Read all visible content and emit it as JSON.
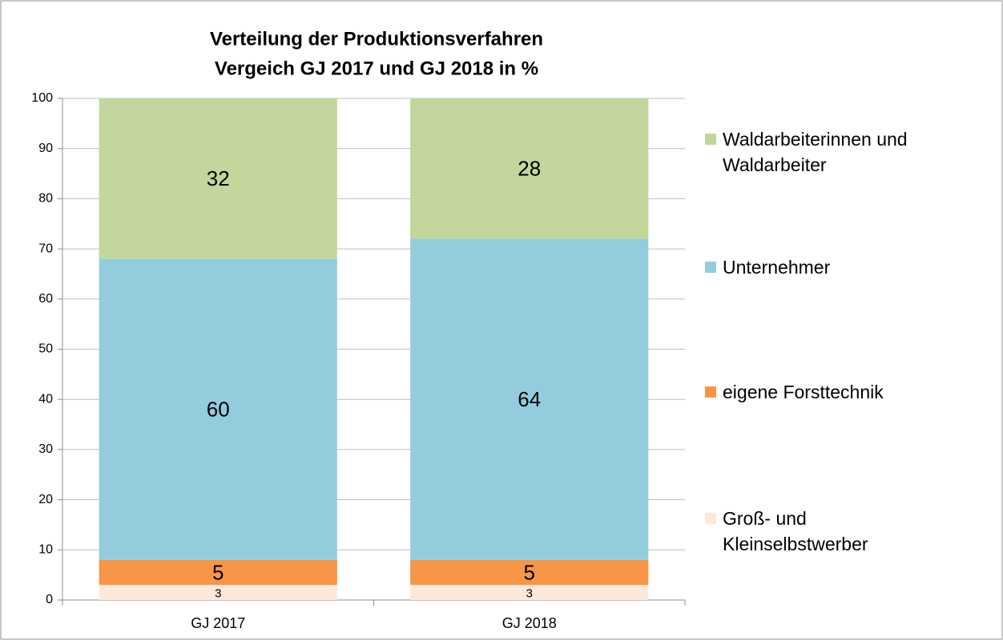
{
  "chart_data": {
    "type": "stacked_bar",
    "title": "Verteilung der Produktionsverfahren",
    "subtitle": "Vergeich GJ 2017 und GJ 2018 in %",
    "categories": [
      "GJ 2017",
      "GJ 2018"
    ],
    "series": [
      {
        "name": "Groß- und Kleinselbstwerber",
        "color": "#fde9d9",
        "values": [
          3,
          3
        ]
      },
      {
        "name": "eigene Forsttechnik",
        "color": "#f79646",
        "values": [
          5,
          5
        ]
      },
      {
        "name": "Unternehmer",
        "color": "#93cddd",
        "values": [
          60,
          64
        ]
      },
      {
        "name": "Waldarbeiterinnen und Waldarbeiter",
        "color": "#c3d69b",
        "values": [
          32,
          28
        ]
      }
    ],
    "ylim": [
      0,
      100
    ],
    "yticks": [
      0,
      10,
      20,
      30,
      40,
      50,
      60,
      70,
      80,
      90,
      100
    ],
    "grid": true,
    "legend": "right"
  }
}
